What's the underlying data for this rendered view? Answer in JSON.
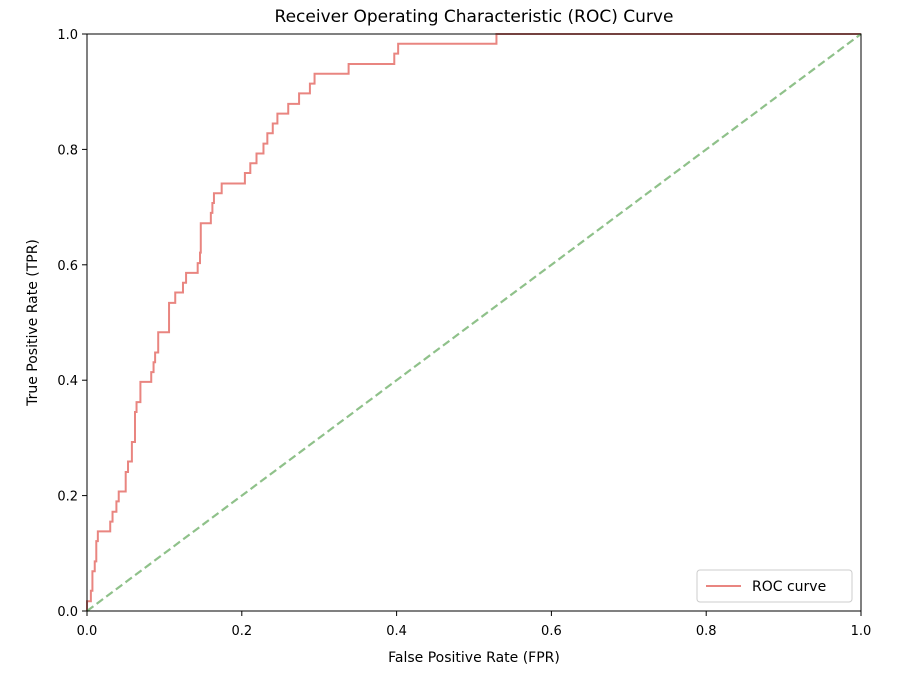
{
  "chart_data": {
    "type": "line",
    "title": "Receiver Operating Characteristic (ROC) Curve",
    "xlabel": "False Positive Rate (FPR)",
    "ylabel": "True Positive Rate (TPR)",
    "xlim": [
      0.0,
      1.0
    ],
    "ylim": [
      0.0,
      1.0
    ],
    "xticks": [
      "0.0",
      "0.2",
      "0.4",
      "0.6",
      "0.8",
      "1.0"
    ],
    "yticks": [
      "0.0",
      "0.2",
      "0.4",
      "0.6",
      "0.8",
      "1.0"
    ],
    "grid": false,
    "legend": {
      "placement": "lower-right",
      "entries": [
        "ROC curve"
      ]
    },
    "series": [
      {
        "name": "ROC curve",
        "color": "#e98580",
        "style": "solid",
        "points": [
          [
            0.0,
            0.0
          ],
          [
            0.0,
            0.017
          ],
          [
            0.005,
            0.017
          ],
          [
            0.005,
            0.035
          ],
          [
            0.007,
            0.035
          ],
          [
            0.007,
            0.069
          ],
          [
            0.01,
            0.069
          ],
          [
            0.01,
            0.086
          ],
          [
            0.012,
            0.086
          ],
          [
            0.012,
            0.121
          ],
          [
            0.014,
            0.121
          ],
          [
            0.014,
            0.138
          ],
          [
            0.03,
            0.138
          ],
          [
            0.03,
            0.155
          ],
          [
            0.033,
            0.155
          ],
          [
            0.033,
            0.172
          ],
          [
            0.038,
            0.172
          ],
          [
            0.038,
            0.19
          ],
          [
            0.041,
            0.19
          ],
          [
            0.041,
            0.207
          ],
          [
            0.05,
            0.207
          ],
          [
            0.05,
            0.241
          ],
          [
            0.053,
            0.241
          ],
          [
            0.053,
            0.259
          ],
          [
            0.058,
            0.259
          ],
          [
            0.058,
            0.293
          ],
          [
            0.062,
            0.293
          ],
          [
            0.062,
            0.345
          ],
          [
            0.064,
            0.345
          ],
          [
            0.064,
            0.362
          ],
          [
            0.069,
            0.362
          ],
          [
            0.069,
            0.397
          ],
          [
            0.083,
            0.397
          ],
          [
            0.083,
            0.414
          ],
          [
            0.086,
            0.414
          ],
          [
            0.086,
            0.431
          ],
          [
            0.088,
            0.431
          ],
          [
            0.088,
            0.448
          ],
          [
            0.092,
            0.448
          ],
          [
            0.092,
            0.483
          ],
          [
            0.106,
            0.483
          ],
          [
            0.106,
            0.534
          ],
          [
            0.114,
            0.534
          ],
          [
            0.114,
            0.552
          ],
          [
            0.124,
            0.552
          ],
          [
            0.124,
            0.569
          ],
          [
            0.128,
            0.569
          ],
          [
            0.128,
            0.586
          ],
          [
            0.143,
            0.586
          ],
          [
            0.143,
            0.603
          ],
          [
            0.146,
            0.603
          ],
          [
            0.146,
            0.621
          ],
          [
            0.147,
            0.621
          ],
          [
            0.147,
            0.672
          ],
          [
            0.16,
            0.672
          ],
          [
            0.16,
            0.69
          ],
          [
            0.162,
            0.69
          ],
          [
            0.162,
            0.707
          ],
          [
            0.164,
            0.707
          ],
          [
            0.164,
            0.724
          ],
          [
            0.174,
            0.724
          ],
          [
            0.174,
            0.741
          ],
          [
            0.204,
            0.741
          ],
          [
            0.204,
            0.759
          ],
          [
            0.211,
            0.759
          ],
          [
            0.211,
            0.776
          ],
          [
            0.219,
            0.776
          ],
          [
            0.219,
            0.793
          ],
          [
            0.228,
            0.793
          ],
          [
            0.228,
            0.81
          ],
          [
            0.233,
            0.81
          ],
          [
            0.233,
            0.828
          ],
          [
            0.24,
            0.828
          ],
          [
            0.24,
            0.845
          ],
          [
            0.246,
            0.845
          ],
          [
            0.246,
            0.862
          ],
          [
            0.26,
            0.862
          ],
          [
            0.26,
            0.879
          ],
          [
            0.274,
            0.879
          ],
          [
            0.274,
            0.897
          ],
          [
            0.288,
            0.897
          ],
          [
            0.288,
            0.914
          ],
          [
            0.294,
            0.914
          ],
          [
            0.294,
            0.931
          ],
          [
            0.338,
            0.931
          ],
          [
            0.338,
            0.948
          ],
          [
            0.397,
            0.948
          ],
          [
            0.397,
            0.966
          ],
          [
            0.402,
            0.966
          ],
          [
            0.402,
            0.983
          ],
          [
            0.529,
            0.983
          ],
          [
            0.529,
            1.0
          ],
          [
            1.0,
            1.0
          ]
        ]
      },
      {
        "name": "",
        "color": "#8fc18a",
        "style": "dashed",
        "points": [
          [
            0.0,
            0.0
          ],
          [
            1.0,
            1.0
          ]
        ]
      }
    ]
  }
}
